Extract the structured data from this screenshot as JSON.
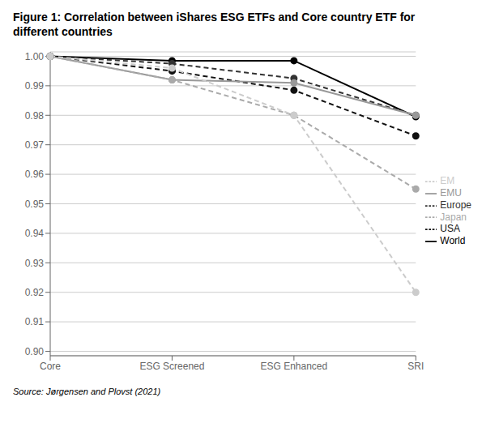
{
  "chart_data": {
    "type": "line",
    "title": "Figure 1: Correlation between iShares ESG ETFs and Core country ETF for\ndifferent countries",
    "annotations": [
      "Source: Jørgensen and Plovst (2021)"
    ],
    "categories": [
      "Core",
      "ESG Screened",
      "ESG Enhanced",
      "SRI"
    ],
    "series": [
      {
        "name": "World",
        "color": "#000000",
        "line_style": "solid",
        "marker": "circle",
        "values": [
          1.0,
          0.9985,
          0.9985,
          0.9795
        ]
      },
      {
        "name": "USA",
        "color": "#111111",
        "line_style": "dashed",
        "marker": "circle",
        "values": [
          1.0,
          0.995,
          0.9885,
          0.973
        ]
      },
      {
        "name": "Europe",
        "color": "#333333",
        "line_style": "dashed",
        "marker": "circle",
        "values": [
          1.0,
          0.9975,
          0.9925,
          0.98
        ]
      },
      {
        "name": "EMU",
        "color": "#999999",
        "line_style": "solid",
        "marker": "circle",
        "values": [
          1.0,
          0.992,
          0.991,
          0.98
        ]
      },
      {
        "name": "Japan",
        "color": "#aaaaaa",
        "line_style": "dashed",
        "marker": "circle",
        "values": [
          1.0,
          0.992,
          0.98,
          0.955
        ]
      },
      {
        "name": "EM",
        "color": "#cccccc",
        "line_style": "dashed",
        "marker": "circle",
        "values": [
          1.0,
          0.996,
          0.98,
          0.92
        ]
      }
    ],
    "ylim": [
      0.8985,
      1.0015
    ],
    "yticks": [
      {
        "value": 0.9,
        "label": "0.90"
      },
      0.91,
      0.92,
      0.93,
      0.94,
      0.95,
      0.96,
      0.97,
      0.98,
      0.99,
      {
        "value": 1,
        "label": "1.00"
      }
    ],
    "grid": true,
    "legend": "right"
  }
}
